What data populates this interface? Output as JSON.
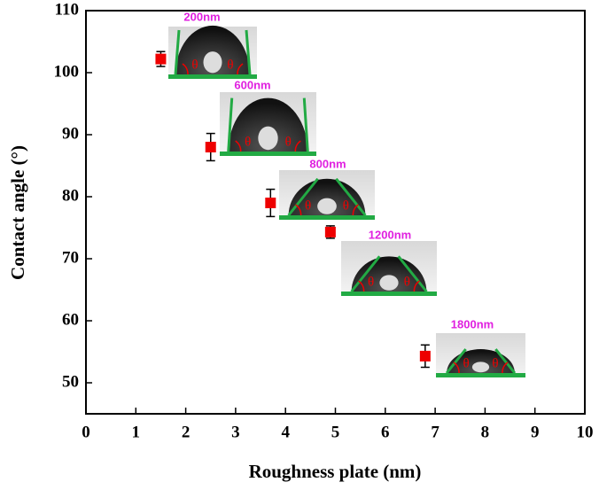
{
  "chart_data": {
    "type": "scatter",
    "x_label": "Roughness plate (nm)",
    "y_label": "Contact angle (°)",
    "x": [
      1.5,
      2.5,
      3.7,
      4.9,
      6.8
    ],
    "values": [
      102.2,
      88,
      79,
      74.3,
      54.3
    ],
    "errors": [
      1.2,
      2.2,
      2.2,
      1,
      1.8
    ],
    "color": "#ee0000",
    "xlim": [
      0,
      10
    ],
    "ylim": [
      45,
      110
    ],
    "xticks": [
      0,
      1,
      2,
      3,
      4,
      5,
      6,
      7,
      8,
      9,
      10
    ],
    "yticks": [
      50,
      60,
      70,
      80,
      90,
      100,
      110
    ],
    "annotations": [
      "200nm",
      "600nm",
      "800nm",
      "1200nm",
      "1800nm"
    ],
    "angle_symbol": "θ"
  }
}
